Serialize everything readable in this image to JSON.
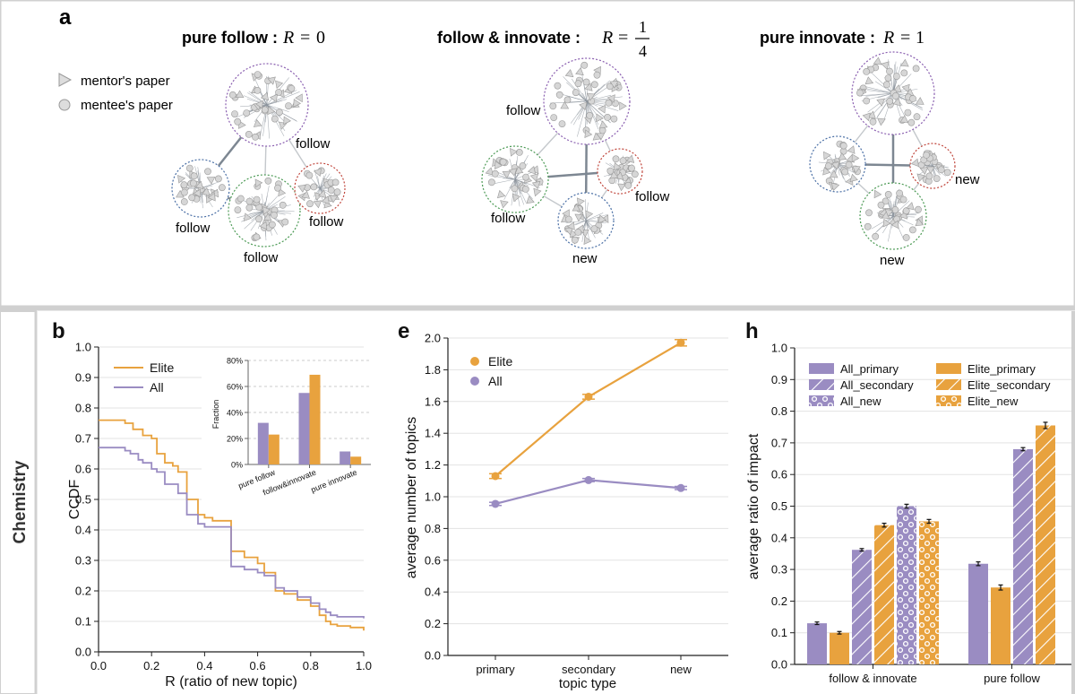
{
  "panel_a": {
    "letter": "a",
    "legend": {
      "mentor": "mentor's paper",
      "mentee": "mentee's paper"
    },
    "networks": [
      {
        "title": "pure follow :",
        "formula_var": "R",
        "formula_eq": "=",
        "formula_val": "0",
        "labels": [
          "follow",
          "follow",
          "follow",
          "follow"
        ]
      },
      {
        "title": "follow & innovate :",
        "formula_var": "R",
        "formula_eq": "=",
        "formula_num": "1",
        "formula_den": "4",
        "labels": [
          "follow",
          "follow",
          "follow",
          "new"
        ]
      },
      {
        "title": "pure innovate :",
        "formula_var": "R",
        "formula_eq": "=",
        "formula_val": "1",
        "labels": [
          "new",
          "new"
        ]
      }
    ]
  },
  "row_label": "Chemistry",
  "colors": {
    "elite": "#E8A23E",
    "all": "#9A8CC2",
    "grid": "#E3E3E3",
    "axis": "#222222",
    "frame": "#CCCCCC"
  },
  "chart_data": [
    {
      "id": "b",
      "letter": "b",
      "type": "line",
      "xlabel": "R (ratio of new topic)",
      "ylabel": "CCDF",
      "xlim": [
        0,
        1
      ],
      "ylim": [
        0,
        1
      ],
      "xticks": [
        "0.0",
        "0.2",
        "0.4",
        "0.6",
        "0.8",
        "1.0"
      ],
      "yticks": [
        "0.0",
        "0.1",
        "0.2",
        "0.3",
        "0.4",
        "0.5",
        "0.6",
        "0.7",
        "0.8",
        "0.9",
        "1.0"
      ],
      "series": [
        {
          "name": "Elite",
          "color_key": "elite",
          "x": [
            0,
            0.1,
            0.13,
            0.167,
            0.2,
            0.22,
            0.25,
            0.28,
            0.3,
            0.333,
            0.375,
            0.4,
            0.43,
            0.5,
            0.55,
            0.6,
            0.625,
            0.667,
            0.7,
            0.75,
            0.8,
            0.833,
            0.857,
            0.875,
            0.9,
            0.95,
            1.0
          ],
          "y": [
            0.76,
            0.75,
            0.73,
            0.71,
            0.7,
            0.65,
            0.62,
            0.61,
            0.59,
            0.5,
            0.45,
            0.44,
            0.43,
            0.33,
            0.31,
            0.29,
            0.26,
            0.2,
            0.19,
            0.17,
            0.15,
            0.12,
            0.1,
            0.09,
            0.085,
            0.08,
            0.07
          ]
        },
        {
          "name": "All",
          "color_key": "all",
          "x": [
            0,
            0.1,
            0.12,
            0.15,
            0.167,
            0.2,
            0.22,
            0.25,
            0.3,
            0.333,
            0.375,
            0.4,
            0.45,
            0.5,
            0.55,
            0.6,
            0.625,
            0.667,
            0.7,
            0.75,
            0.8,
            0.833,
            0.857,
            0.875,
            0.9,
            1.0
          ],
          "y": [
            0.67,
            0.66,
            0.65,
            0.63,
            0.62,
            0.6,
            0.59,
            0.55,
            0.52,
            0.45,
            0.42,
            0.41,
            0.41,
            0.28,
            0.27,
            0.26,
            0.25,
            0.21,
            0.2,
            0.18,
            0.16,
            0.14,
            0.13,
            0.12,
            0.115,
            0.11
          ]
        }
      ],
      "legend": [
        "Elite",
        "All"
      ],
      "inset": {
        "type": "bar",
        "ylabel": "Fraction",
        "ylim": [
          0,
          0.8
        ],
        "yticks": [
          "0%",
          "20%",
          "40%",
          "60%",
          "80%"
        ],
        "categories": [
          "pure follow",
          "follow&innovate",
          "pure innovate"
        ],
        "series": [
          {
            "name": "All",
            "color_key": "all",
            "values": [
              0.32,
              0.55,
              0.1
            ]
          },
          {
            "name": "Elite",
            "color_key": "elite",
            "values": [
              0.23,
              0.69,
              0.06
            ]
          }
        ]
      }
    },
    {
      "id": "e",
      "letter": "e",
      "type": "line",
      "xlabel": "topic type",
      "ylabel": "average number of topics",
      "categories": [
        "primary",
        "secondary",
        "new"
      ],
      "ylim": [
        0,
        2.0
      ],
      "yticks": [
        "0.0",
        "0.2",
        "0.4",
        "0.6",
        "0.8",
        "1.0",
        "1.2",
        "1.4",
        "1.6",
        "1.8",
        "2.0"
      ],
      "series": [
        {
          "name": "Elite",
          "color_key": "elite",
          "values": [
            1.13,
            1.63,
            1.97
          ],
          "errors": [
            0.015,
            0.015,
            0.02
          ]
        },
        {
          "name": "All",
          "color_key": "all",
          "values": [
            0.955,
            1.105,
            1.055
          ],
          "errors": [
            0.01,
            0.01,
            0.01
          ]
        }
      ],
      "legend": [
        "Elite",
        "All"
      ]
    },
    {
      "id": "h",
      "letter": "h",
      "type": "bar",
      "xlabel": "",
      "ylabel": "average ratio of impact",
      "categories": [
        "follow & innovate",
        "pure follow"
      ],
      "ylim": [
        0,
        1.0
      ],
      "yticks": [
        "0.0",
        "0.1",
        "0.2",
        "0.3",
        "0.4",
        "0.5",
        "0.6",
        "0.7",
        "0.8",
        "0.9",
        "1.0"
      ],
      "series": [
        {
          "name": "All_primary",
          "color_key": "all",
          "pattern": "solid",
          "values": [
            0.13,
            0.318
          ],
          "errors": [
            0.004,
            0.006
          ]
        },
        {
          "name": "Elite_primary",
          "color_key": "elite",
          "pattern": "solid",
          "values": [
            0.1,
            0.243
          ],
          "errors": [
            0.004,
            0.008
          ]
        },
        {
          "name": "All_secondary",
          "color_key": "all",
          "pattern": "hatch",
          "values": [
            0.362,
            0.68
          ],
          "errors": [
            0.004,
            0.005
          ]
        },
        {
          "name": "Elite_secondary",
          "color_key": "elite",
          "pattern": "hatch",
          "values": [
            0.44,
            0.755
          ],
          "errors": [
            0.006,
            0.01
          ]
        },
        {
          "name": "All_new",
          "color_key": "all",
          "pattern": "dots",
          "values": [
            0.5,
            null
          ],
          "errors": [
            0.006,
            null
          ]
        },
        {
          "name": "Elite_new",
          "color_key": "elite",
          "pattern": "dots",
          "values": [
            0.452,
            null
          ],
          "errors": [
            0.006,
            null
          ]
        }
      ],
      "legend": [
        "All_primary",
        "Elite_primary",
        "All_secondary",
        "Elite_secondary",
        "All_new",
        "Elite_new"
      ]
    }
  ]
}
